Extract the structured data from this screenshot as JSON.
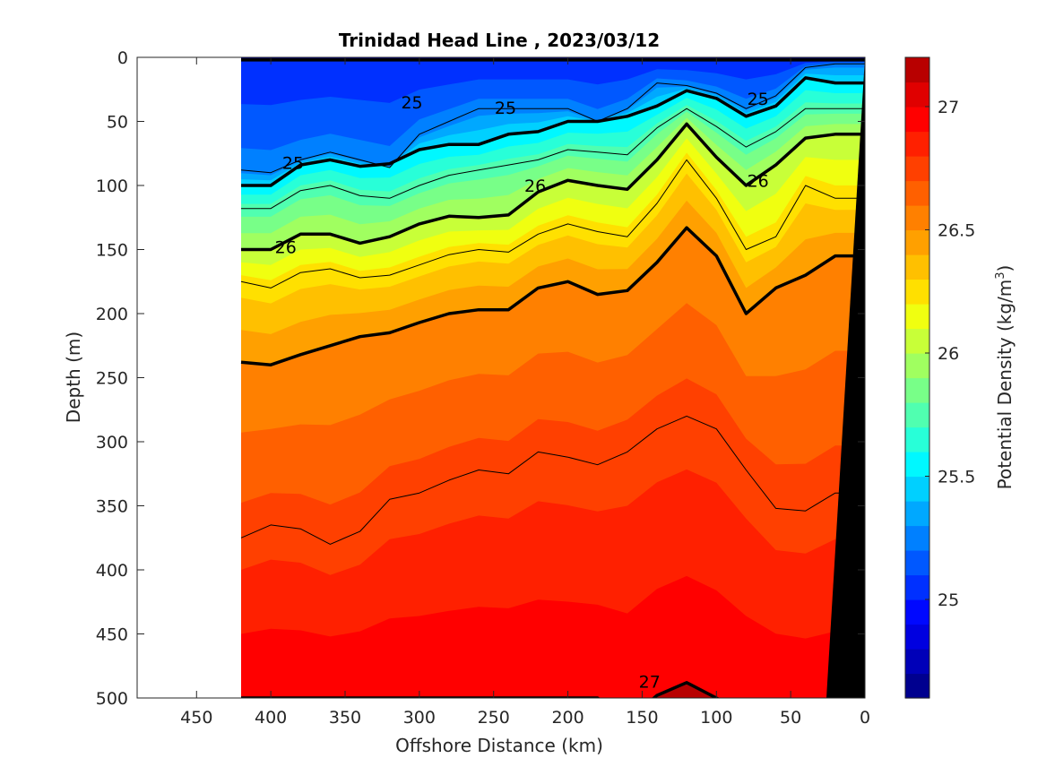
{
  "chart_data": {
    "type": "contour",
    "title": "Trinidad Head Line , 2023/03/12",
    "xlabel": "Offshore Distance (km)",
    "ylabel": "Depth (m)",
    "colorbar_label": "Potential Density (kg/m",
    "colorbar_label_superscript": "3",
    "colorbar_label_suffix": ")",
    "xlim": [
      490,
      0
    ],
    "ylim": [
      500,
      0
    ],
    "x_reversed": true,
    "y_reversed": true,
    "x_ticks": [
      450,
      400,
      350,
      300,
      250,
      200,
      150,
      100,
      50,
      0
    ],
    "x_tick_labels": [
      "450",
      "400",
      "350",
      "300",
      "250",
      "200",
      "150",
      "100",
      "50",
      "0"
    ],
    "y_ticks": [
      0,
      50,
      100,
      150,
      200,
      250,
      300,
      350,
      400,
      450,
      500
    ],
    "y_tick_labels": [
      "0",
      "50",
      "100",
      "150",
      "200",
      "250",
      "300",
      "350",
      "400",
      "450",
      "500"
    ],
    "data_extent_x": [
      420,
      0
    ],
    "color_range": [
      24.6,
      27.2
    ],
    "colorbar_ticks": [
      25,
      25.5,
      26,
      26.5,
      27
    ],
    "colorbar_tick_labels": [
      "25",
      "25.5",
      "26",
      "26.5",
      "27"
    ],
    "colormap": [
      "#00008F",
      "#0000B8",
      "#0000E0",
      "#0008FF",
      "#0030FF",
      "#0058FF",
      "#0080FF",
      "#00A8FF",
      "#00D0FF",
      "#00F8FF",
      "#28FFD8",
      "#50FFB0",
      "#78FF88",
      "#A0FF60",
      "#C8FF38",
      "#F0FF10",
      "#FFE000",
      "#FFC000",
      "#FFA000",
      "#FF8000",
      "#FF6000",
      "#FF4000",
      "#FF2000",
      "#FF0000",
      "#E00000",
      "#B80000"
    ],
    "land_color": "#000000",
    "station_x": [
      420,
      400,
      380,
      360,
      340,
      320,
      300,
      280,
      260,
      240,
      220,
      200,
      180,
      160,
      140,
      120,
      100,
      80,
      60,
      40,
      20
    ],
    "isopycnals": [
      {
        "level": 25.0,
        "depth": [
          2,
          2,
          2,
          2,
          2,
          2,
          2,
          2,
          2,
          2,
          2,
          2,
          2,
          2,
          2,
          2,
          2,
          2,
          2,
          2,
          2
        ]
      },
      {
        "level": 25.5,
        "depth": [
          100,
          100,
          84,
          80,
          85,
          83,
          72,
          68,
          68,
          60,
          58,
          50,
          50,
          46,
          38,
          26,
          32,
          46,
          38,
          16,
          20
        ]
      },
      {
        "level": 26.0,
        "depth": [
          150,
          150,
          138,
          138,
          145,
          140,
          130,
          124,
          125,
          123,
          105,
          96,
          100,
          103,
          80,
          52,
          78,
          100,
          84,
          63,
          60
        ]
      },
      {
        "level": 26.5,
        "depth": [
          238,
          240,
          232,
          225,
          218,
          215,
          207,
          200,
          197,
          197,
          180,
          175,
          185,
          182,
          160,
          133,
          155,
          200,
          180,
          170,
          155
        ]
      },
      {
        "level": 27.0,
        "depth": [
          500,
          500,
          500,
          500,
          500,
          500,
          500,
          500,
          500,
          500,
          500,
          500,
          500,
          518,
          498,
          488,
          500,
          512,
          515,
          520,
          520
        ]
      }
    ],
    "thin_contours": [
      {
        "level": 25.25,
        "depth": [
          88,
          90,
          80,
          74,
          80,
          86,
          60,
          50,
          40,
          40,
          40,
          40,
          50,
          40,
          20,
          22,
          28,
          40,
          30,
          8,
          5
        ]
      },
      {
        "level": 25.75,
        "depth": [
          118,
          118,
          104,
          100,
          108,
          110,
          100,
          92,
          88,
          84,
          80,
          72,
          74,
          76,
          55,
          40,
          54,
          70,
          58,
          40,
          40
        ]
      },
      {
        "level": 26.25,
        "depth": [
          175,
          180,
          168,
          165,
          172,
          170,
          162,
          154,
          150,
          152,
          138,
          130,
          136,
          140,
          114,
          80,
          110,
          150,
          140,
          100,
          110
        ]
      },
      {
        "level": 26.75,
        "depth": [
          375,
          365,
          368,
          380,
          370,
          345,
          340,
          330,
          322,
          325,
          308,
          312,
          318,
          308,
          290,
          280,
          290,
          322,
          352,
          354,
          340
        ]
      }
    ],
    "contour_labels": [
      {
        "text": "25",
        "x": 385,
        "y": 82
      },
      {
        "text": "25",
        "x": 305,
        "y": 35
      },
      {
        "text": "25",
        "x": 242,
        "y": 39
      },
      {
        "text": "25",
        "x": 72,
        "y": 32
      },
      {
        "text": "26",
        "x": 390,
        "y": 148
      },
      {
        "text": "26",
        "x": 222,
        "y": 100
      },
      {
        "text": "26",
        "x": 72,
        "y": 96
      },
      {
        "text": "27",
        "x": 145,
        "y": 487
      }
    ]
  }
}
